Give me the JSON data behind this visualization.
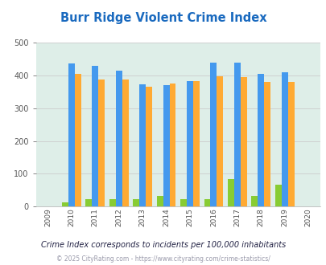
{
  "title": "Burr Ridge Violent Crime Index",
  "years": [
    2009,
    2010,
    2011,
    2012,
    2013,
    2014,
    2015,
    2016,
    2017,
    2018,
    2019,
    2020
  ],
  "data_years": [
    2010,
    2011,
    2012,
    2013,
    2014,
    2015,
    2016,
    2017,
    2018,
    2019
  ],
  "burr_ridge": [
    12,
    23,
    24,
    22,
    33,
    23,
    24,
    85,
    33,
    67
  ],
  "illinois": [
    435,
    428,
    414,
    372,
    369,
    383,
    438,
    438,
    405,
    408
  ],
  "national": [
    404,
    387,
    387,
    366,
    375,
    383,
    397,
    394,
    380,
    379
  ],
  "color_burr": "#88cc33",
  "color_illinois": "#4499ee",
  "color_national": "#ffaa33",
  "background_color": "#deeee8",
  "ylim": [
    0,
    500
  ],
  "yticks": [
    0,
    100,
    200,
    300,
    400,
    500
  ],
  "footnote1": "Crime Index corresponds to incidents per 100,000 inhabitants",
  "footnote2": "© 2025 CityRating.com - https://www.cityrating.com/crime-statistics/",
  "title_color": "#1a6abf",
  "footnote1_color": "#222244",
  "footnote2_color": "#9999aa",
  "legend_text_color": "#333366"
}
